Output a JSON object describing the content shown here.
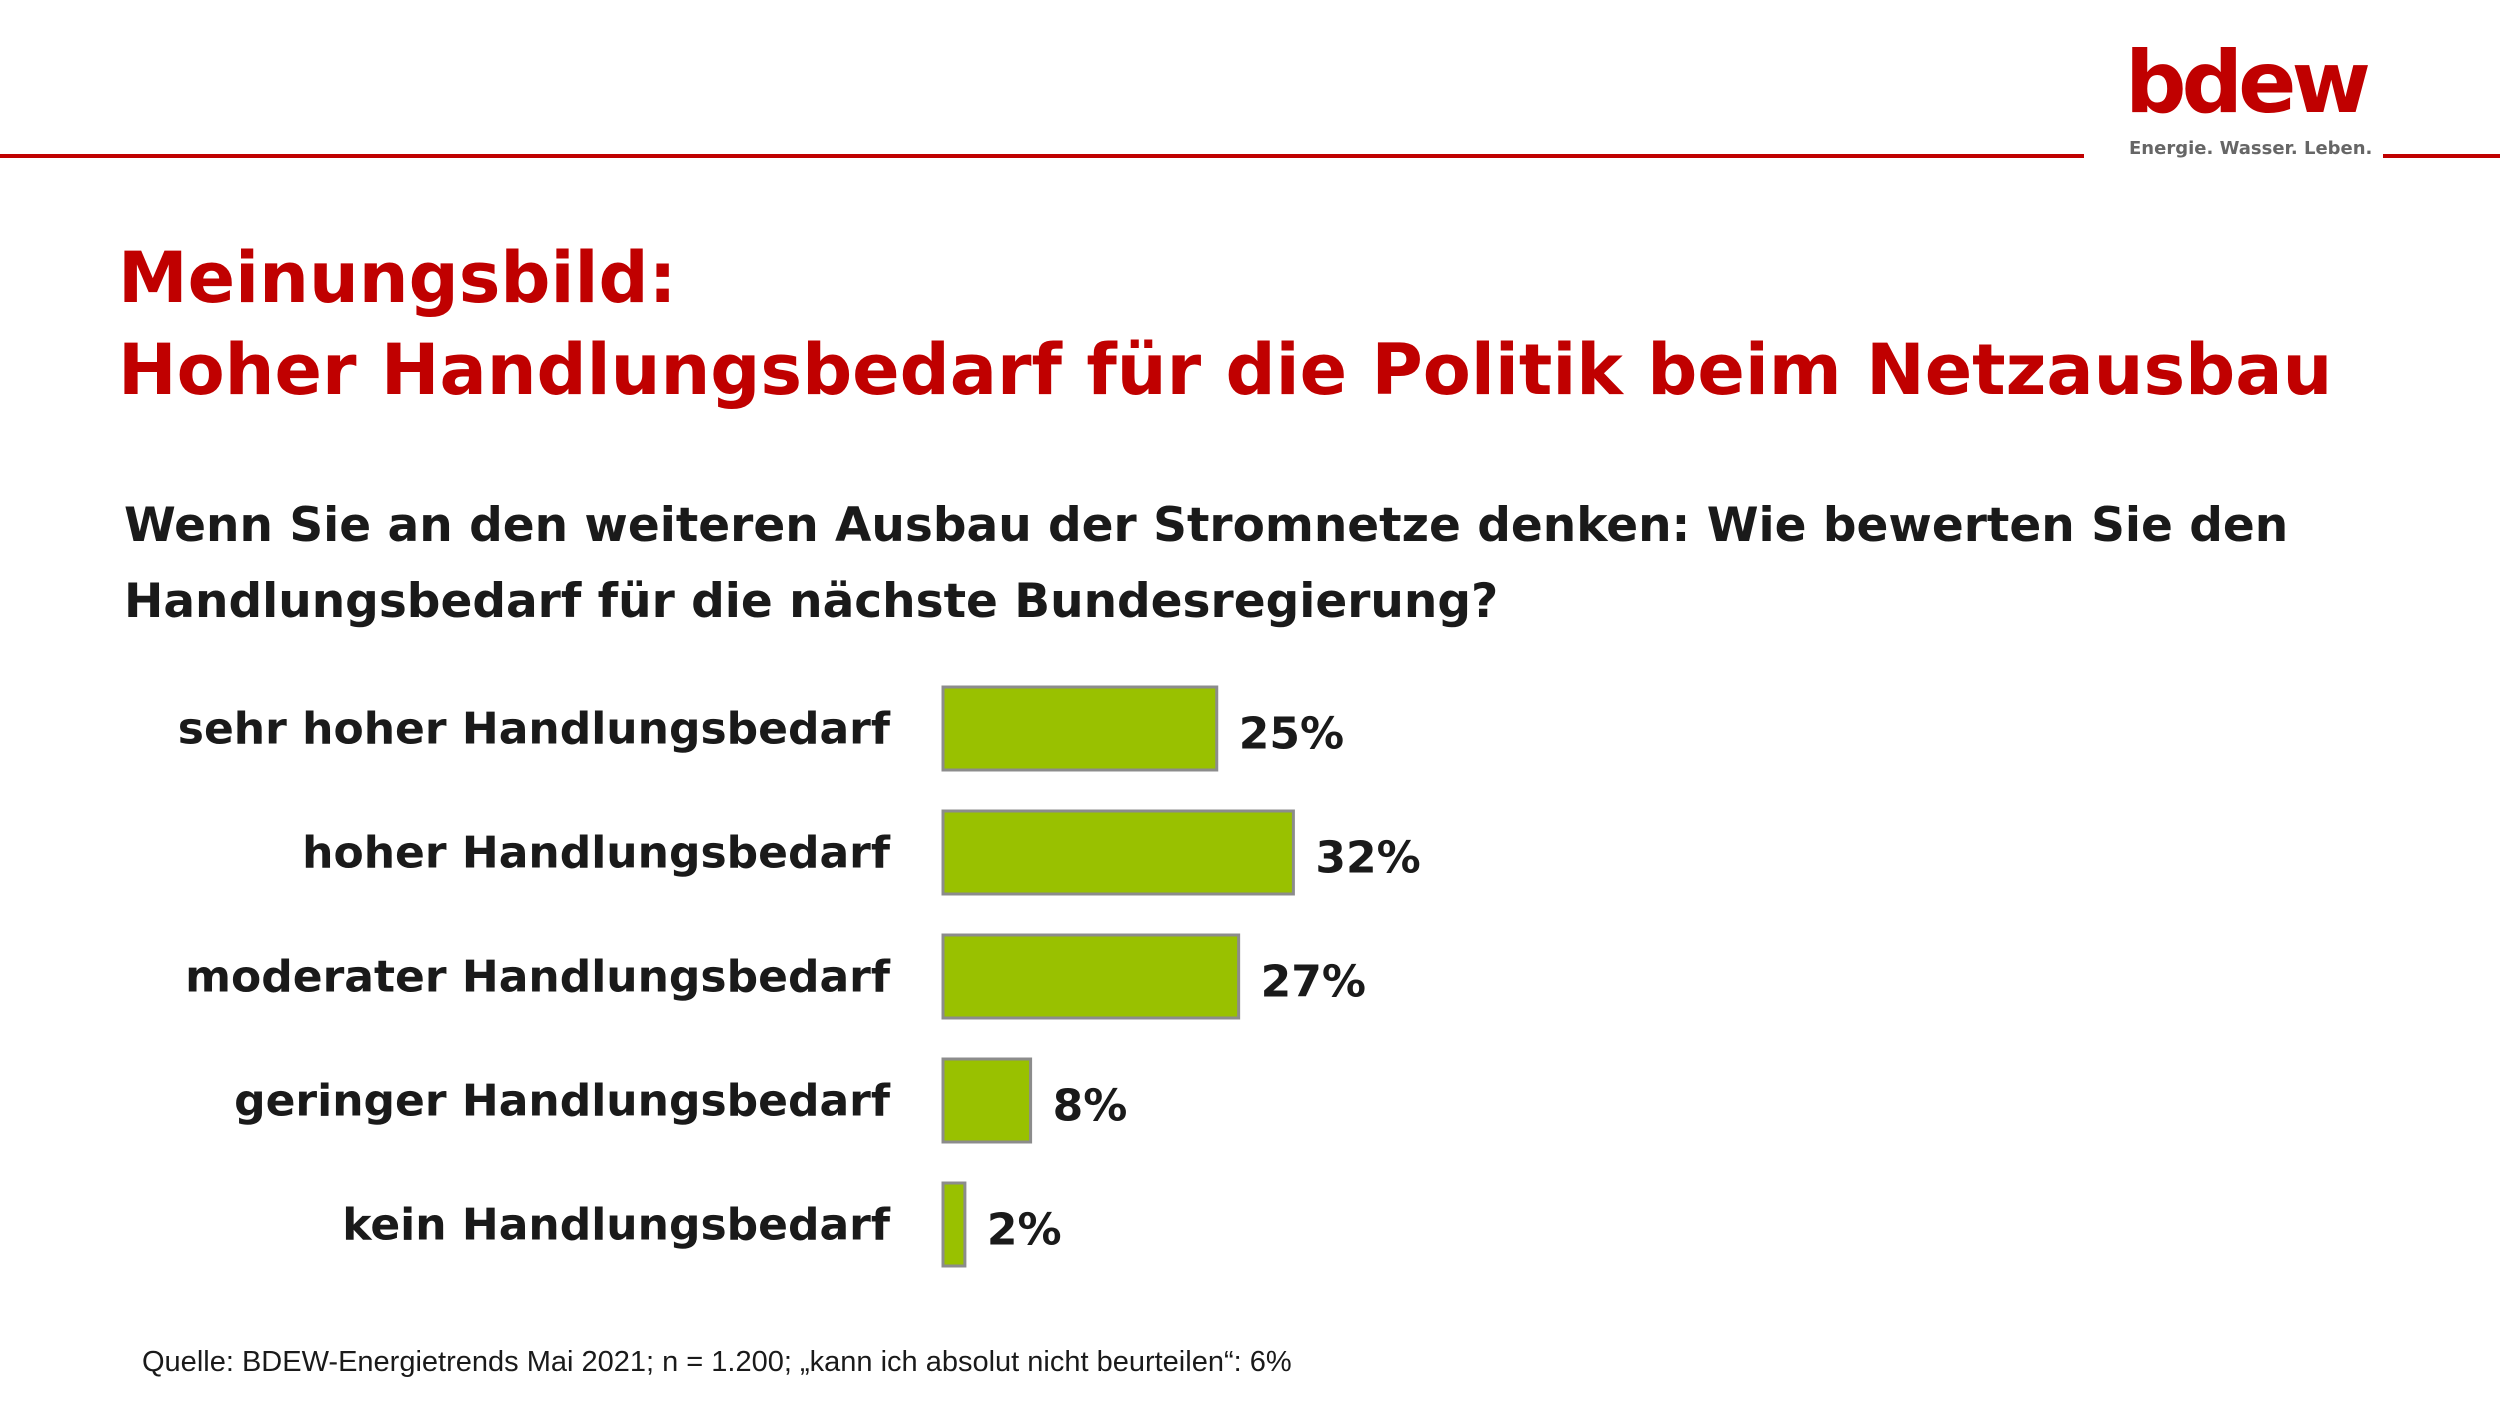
{
  "colors": {
    "brand_red": "#c00000",
    "bar_fill": "#99c100",
    "bar_stroke": "#8c8c8c"
  },
  "logo": {
    "wordmark": "bdew",
    "tagline": "Energie. Wasser. Leben."
  },
  "title": {
    "line1": "Meinungsbild:",
    "line2": "Hoher Handlungsbedarf für die Politik beim Netzausbau"
  },
  "question": {
    "line1": "Wenn Sie an den weiteren Ausbau der Stromnetze denken: Wie bewerten Sie den",
    "line2": "Handlungsbedarf für die nächste Bundesregierung?"
  },
  "chart_data": {
    "type": "bar",
    "orientation": "horizontal",
    "categories": [
      "sehr hoher Handlungsbedarf",
      "hoher Handlungsbedarf",
      "moderater Handlungsbedarf",
      "geringer Handlungsbedarf",
      "kein Handlungsbedarf"
    ],
    "values": [
      25,
      32,
      27,
      8,
      2
    ],
    "value_labels": [
      "25%",
      "32%",
      "27%",
      "8%",
      "2%"
    ],
    "unit": "%",
    "xlim": [
      0,
      100
    ],
    "grid": false,
    "legend": "none"
  },
  "source": "Quelle: BDEW-Energietrends Mai 2021; n = 1.200; „kann ich absolut nicht beurteilen“: 6%"
}
